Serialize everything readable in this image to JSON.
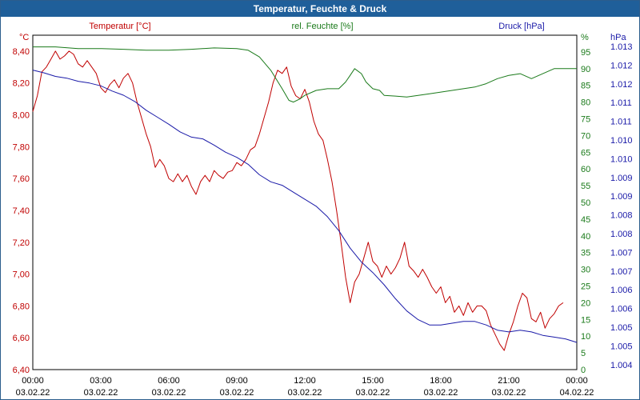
{
  "window": {
    "title": "Temperatur, Feuchte & Druck"
  },
  "colors": {
    "temperature": "#c00000",
    "humidity": "#1a7a1a",
    "pressure": "#1a1aa8",
    "grid": "#000000",
    "title_bar": "#1f5f9a"
  },
  "chart_data": {
    "type": "line",
    "title": "Temperatur, Feuchte & Druck",
    "x_ticks": [
      {
        "time": "00:00",
        "date": "03.02.22"
      },
      {
        "time": "03:00",
        "date": "03.02.22"
      },
      {
        "time": "06:00",
        "date": "03.02.22"
      },
      {
        "time": "09:00",
        "date": "03.02.22"
      },
      {
        "time": "12:00",
        "date": "03.02.22"
      },
      {
        "time": "15:00",
        "date": "03.02.22"
      },
      {
        "time": "18:00",
        "date": "03.02.22"
      },
      {
        "time": "21:00",
        "date": "03.02.22"
      },
      {
        "time": "00:00",
        "date": "04.02.22"
      }
    ],
    "x_range_hours": [
      0,
      24
    ],
    "axes": {
      "temperature": {
        "label": "Temperatur [°C]",
        "unit": "°C",
        "range": [
          6.4,
          8.5
        ],
        "ticks": [
          "8,40",
          "8,20",
          "8,00",
          "7,80",
          "7,60",
          "7,40",
          "7,20",
          "7,00",
          "6,80",
          "6,60",
          "6,40"
        ]
      },
      "humidity": {
        "label": "rel. Feuchte [%]",
        "unit": "%",
        "range": [
          0,
          100
        ],
        "ticks": [
          "95",
          "90",
          "85",
          "80",
          "75",
          "70",
          "65",
          "60",
          "55",
          "50",
          "45",
          "40",
          "35",
          "30",
          "25",
          "20",
          "15",
          "10",
          "5",
          "0"
        ]
      },
      "pressure": {
        "label": "Druck [hPa]",
        "unit": "hPa",
        "range": [
          1.00382,
          1.0134
        ],
        "ticks": [
          "1.013",
          "1.012",
          "1.012",
          "1.011",
          "1.011",
          "1.010",
          "1.010",
          "1.009",
          "1.009",
          "1.008",
          "1.008",
          "1.007",
          "1.007",
          "1.006",
          "1.006",
          "1.005",
          "1.005",
          "1.004"
        ]
      }
    },
    "series": [
      {
        "name": "Temperatur [°C]",
        "axis": "temperature",
        "points": [
          [
            0.0,
            8.02
          ],
          [
            0.2,
            8.12
          ],
          [
            0.4,
            8.27
          ],
          [
            0.6,
            8.3
          ],
          [
            0.8,
            8.35
          ],
          [
            1.0,
            8.4
          ],
          [
            1.2,
            8.35
          ],
          [
            1.4,
            8.37
          ],
          [
            1.6,
            8.4
          ],
          [
            1.8,
            8.38
          ],
          [
            2.0,
            8.32
          ],
          [
            2.2,
            8.3
          ],
          [
            2.4,
            8.34
          ],
          [
            2.6,
            8.3
          ],
          [
            2.8,
            8.26
          ],
          [
            3.0,
            8.17
          ],
          [
            3.2,
            8.14
          ],
          [
            3.4,
            8.19
          ],
          [
            3.6,
            8.22
          ],
          [
            3.8,
            8.17
          ],
          [
            4.0,
            8.23
          ],
          [
            4.2,
            8.26
          ],
          [
            4.4,
            8.2
          ],
          [
            4.6,
            8.08
          ],
          [
            4.8,
            7.98
          ],
          [
            5.0,
            7.88
          ],
          [
            5.2,
            7.8
          ],
          [
            5.4,
            7.67
          ],
          [
            5.6,
            7.72
          ],
          [
            5.8,
            7.68
          ],
          [
            6.0,
            7.6
          ],
          [
            6.2,
            7.58
          ],
          [
            6.4,
            7.63
          ],
          [
            6.6,
            7.58
          ],
          [
            6.8,
            7.62
          ],
          [
            7.0,
            7.55
          ],
          [
            7.2,
            7.5
          ],
          [
            7.4,
            7.58
          ],
          [
            7.6,
            7.62
          ],
          [
            7.8,
            7.58
          ],
          [
            8.0,
            7.65
          ],
          [
            8.2,
            7.62
          ],
          [
            8.4,
            7.6
          ],
          [
            8.6,
            7.64
          ],
          [
            8.8,
            7.65
          ],
          [
            9.0,
            7.7
          ],
          [
            9.2,
            7.68
          ],
          [
            9.4,
            7.72
          ],
          [
            9.6,
            7.78
          ],
          [
            9.8,
            7.8
          ],
          [
            10.0,
            7.88
          ],
          [
            10.2,
            7.98
          ],
          [
            10.4,
            8.08
          ],
          [
            10.6,
            8.2
          ],
          [
            10.8,
            8.28
          ],
          [
            11.0,
            8.26
          ],
          [
            11.2,
            8.3
          ],
          [
            11.4,
            8.18
          ],
          [
            11.6,
            8.12
          ],
          [
            11.8,
            8.1
          ],
          [
            12.0,
            8.16
          ],
          [
            12.2,
            8.08
          ],
          [
            12.4,
            7.96
          ],
          [
            12.6,
            7.88
          ],
          [
            12.8,
            7.84
          ],
          [
            13.0,
            7.72
          ],
          [
            13.2,
            7.58
          ],
          [
            13.4,
            7.4
          ],
          [
            13.6,
            7.2
          ],
          [
            13.8,
            6.98
          ],
          [
            14.0,
            6.82
          ],
          [
            14.2,
            6.95
          ],
          [
            14.4,
            7.0
          ],
          [
            14.6,
            7.1
          ],
          [
            14.8,
            7.2
          ],
          [
            15.0,
            7.08
          ],
          [
            15.2,
            7.05
          ],
          [
            15.4,
            6.98
          ],
          [
            15.6,
            7.05
          ],
          [
            15.8,
            7.0
          ],
          [
            16.0,
            7.04
          ],
          [
            16.2,
            7.1
          ],
          [
            16.4,
            7.2
          ],
          [
            16.6,
            7.05
          ],
          [
            16.8,
            7.02
          ],
          [
            17.0,
            6.98
          ],
          [
            17.2,
            7.03
          ],
          [
            17.4,
            6.98
          ],
          [
            17.6,
            6.92
          ],
          [
            17.8,
            6.88
          ],
          [
            18.0,
            6.92
          ],
          [
            18.2,
            6.82
          ],
          [
            18.4,
            6.86
          ],
          [
            18.6,
            6.76
          ],
          [
            18.8,
            6.8
          ],
          [
            19.0,
            6.74
          ],
          [
            19.2,
            6.82
          ],
          [
            19.4,
            6.76
          ],
          [
            19.6,
            6.8
          ],
          [
            19.8,
            6.8
          ],
          [
            20.0,
            6.77
          ],
          [
            20.2,
            6.68
          ],
          [
            20.4,
            6.62
          ],
          [
            20.6,
            6.56
          ],
          [
            20.8,
            6.52
          ],
          [
            21.0,
            6.62
          ],
          [
            21.2,
            6.7
          ],
          [
            21.4,
            6.8
          ],
          [
            21.6,
            6.88
          ],
          [
            21.8,
            6.85
          ],
          [
            22.0,
            6.72
          ],
          [
            22.2,
            6.7
          ],
          [
            22.4,
            6.76
          ],
          [
            22.6,
            6.66
          ],
          [
            22.8,
            6.72
          ],
          [
            23.0,
            6.75
          ],
          [
            23.2,
            6.8
          ],
          [
            23.4,
            6.82
          ]
        ]
      },
      {
        "name": "rel. Feuchte [%]",
        "axis": "humidity",
        "points": [
          [
            0.0,
            96.5
          ],
          [
            1.0,
            96.5
          ],
          [
            2.0,
            96.0
          ],
          [
            3.0,
            96.0
          ],
          [
            4.0,
            95.8
          ],
          [
            5.0,
            95.5
          ],
          [
            6.0,
            95.5
          ],
          [
            7.0,
            95.8
          ],
          [
            8.0,
            96.2
          ],
          [
            9.0,
            96.0
          ],
          [
            9.5,
            95.5
          ],
          [
            10.0,
            93.5
          ],
          [
            10.5,
            89.5
          ],
          [
            11.0,
            84.0
          ],
          [
            11.3,
            80.5
          ],
          [
            11.5,
            80.0
          ],
          [
            11.8,
            81.0
          ],
          [
            12.0,
            82.0
          ],
          [
            12.5,
            83.5
          ],
          [
            13.0,
            84.0
          ],
          [
            13.5,
            84.0
          ],
          [
            13.8,
            86.0
          ],
          [
            14.0,
            88.0
          ],
          [
            14.2,
            90.0
          ],
          [
            14.5,
            88.5
          ],
          [
            14.7,
            86.0
          ],
          [
            15.0,
            84.0
          ],
          [
            15.3,
            83.5
          ],
          [
            15.5,
            82.0
          ],
          [
            16.0,
            81.8
          ],
          [
            16.5,
            81.5
          ],
          [
            17.0,
            82.0
          ],
          [
            17.5,
            82.5
          ],
          [
            18.0,
            83.0
          ],
          [
            18.5,
            83.5
          ],
          [
            19.0,
            84.0
          ],
          [
            19.5,
            84.5
          ],
          [
            20.0,
            85.5
          ],
          [
            20.5,
            87.0
          ],
          [
            21.0,
            88.0
          ],
          [
            21.5,
            88.5
          ],
          [
            22.0,
            87.0
          ],
          [
            22.5,
            88.5
          ],
          [
            23.0,
            90.0
          ],
          [
            23.5,
            90.0
          ],
          [
            24.0,
            90.0
          ]
        ]
      },
      {
        "name": "Druck [hPa]",
        "axis": "pressure",
        "points": [
          [
            0.0,
            1.0124
          ],
          [
            0.5,
            1.01232
          ],
          [
            1.0,
            1.01222
          ],
          [
            1.5,
            1.01217
          ],
          [
            2.0,
            1.01208
          ],
          [
            2.5,
            1.01203
          ],
          [
            3.0,
            1.01195
          ],
          [
            3.5,
            1.0118
          ],
          [
            4.0,
            1.01168
          ],
          [
            4.5,
            1.0115
          ],
          [
            5.0,
            1.01125
          ],
          [
            5.5,
            1.01105
          ],
          [
            6.0,
            1.01085
          ],
          [
            6.5,
            1.01063
          ],
          [
            7.0,
            1.01048
          ],
          [
            7.5,
            1.01043
          ],
          [
            8.0,
            1.01025
          ],
          [
            8.5,
            1.01005
          ],
          [
            9.0,
            1.0099
          ],
          [
            9.5,
            1.0097
          ],
          [
            10.0,
            1.0094
          ],
          [
            10.5,
            1.0092
          ],
          [
            11.0,
            1.0091
          ],
          [
            11.5,
            1.0089
          ],
          [
            12.0,
            1.0087
          ],
          [
            12.5,
            1.0085
          ],
          [
            13.0,
            1.0082
          ],
          [
            13.5,
            1.0078
          ],
          [
            14.0,
            1.0073
          ],
          [
            14.5,
            1.0069
          ],
          [
            15.0,
            1.0066
          ],
          [
            15.5,
            1.00625
          ],
          [
            16.0,
            1.00585
          ],
          [
            16.5,
            1.0055
          ],
          [
            17.0,
            1.00525
          ],
          [
            17.5,
            1.0051
          ],
          [
            18.0,
            1.0051
          ],
          [
            18.5,
            1.00515
          ],
          [
            19.0,
            1.0052
          ],
          [
            19.5,
            1.0052
          ],
          [
            20.0,
            1.0051
          ],
          [
            20.5,
            1.00495
          ],
          [
            21.0,
            1.0049
          ],
          [
            21.5,
            1.00495
          ],
          [
            22.0,
            1.0049
          ],
          [
            22.5,
            1.0048
          ],
          [
            23.0,
            1.00475
          ],
          [
            23.5,
            1.0047
          ],
          [
            24.0,
            1.0046
          ]
        ]
      }
    ]
  }
}
